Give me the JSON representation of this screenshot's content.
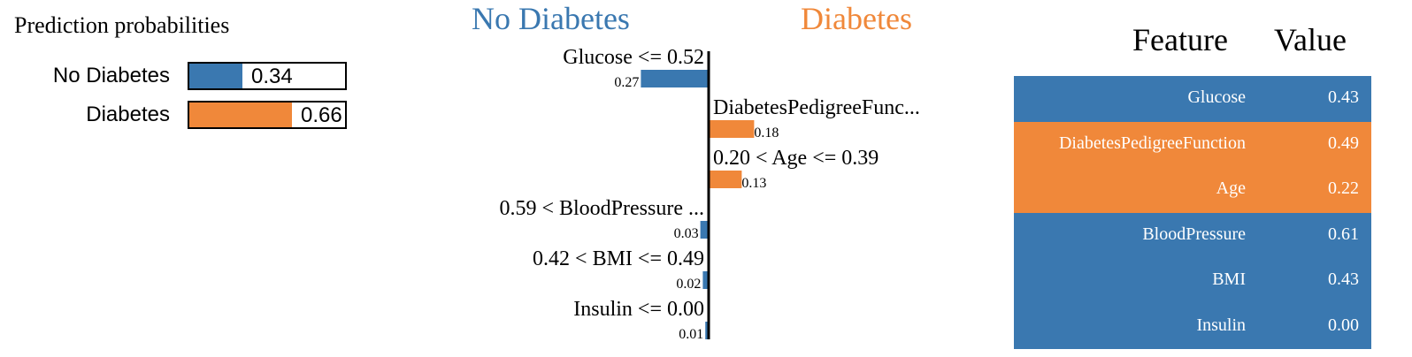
{
  "colors": {
    "no_diabetes": "#3a78b0",
    "diabetes": "#f0883a"
  },
  "prediction": {
    "title": "Prediction probabilities",
    "items": [
      {
        "label": "No Diabetes",
        "value": 0.34,
        "value_text": "0.34",
        "color": "#3a78b0"
      },
      {
        "label": "Diabetes",
        "value": 0.66,
        "value_text": "0.66",
        "color": "#f0883a"
      }
    ]
  },
  "explanation": {
    "class_left": "No Diabetes",
    "class_right": "Diabetes"
  },
  "chart_data": {
    "type": "bar",
    "orientation": "horizontal",
    "categories": [
      "Glucose <= 0.52",
      "DiabetesPedigreeFunc...",
      "0.20 < Age <= 0.39",
      "0.59 < BloodPressure ...",
      "0.42 < BMI <= 0.49",
      "Insulin <= 0.00"
    ],
    "values": [
      -0.27,
      0.18,
      0.13,
      -0.03,
      -0.02,
      -0.01
    ],
    "value_labels": [
      "0.27",
      "0.18",
      "0.13",
      "0.03",
      "0.02",
      "0.01"
    ],
    "title": "",
    "xlabel": "",
    "ylabel": ""
  },
  "table": {
    "headers": {
      "feature": "Feature",
      "value": "Value"
    },
    "rows": [
      {
        "feature": "Glucose",
        "value": "0.43",
        "color": "#3a78b0"
      },
      {
        "feature": "DiabetesPedigreeFunction",
        "value": "0.49",
        "color": "#f0883a"
      },
      {
        "feature": "Age",
        "value": "0.22",
        "color": "#f0883a"
      },
      {
        "feature": "BloodPressure",
        "value": "0.61",
        "color": "#3a78b0"
      },
      {
        "feature": "BMI",
        "value": "0.43",
        "color": "#3a78b0"
      },
      {
        "feature": "Insulin",
        "value": "0.00",
        "color": "#3a78b0"
      }
    ]
  }
}
